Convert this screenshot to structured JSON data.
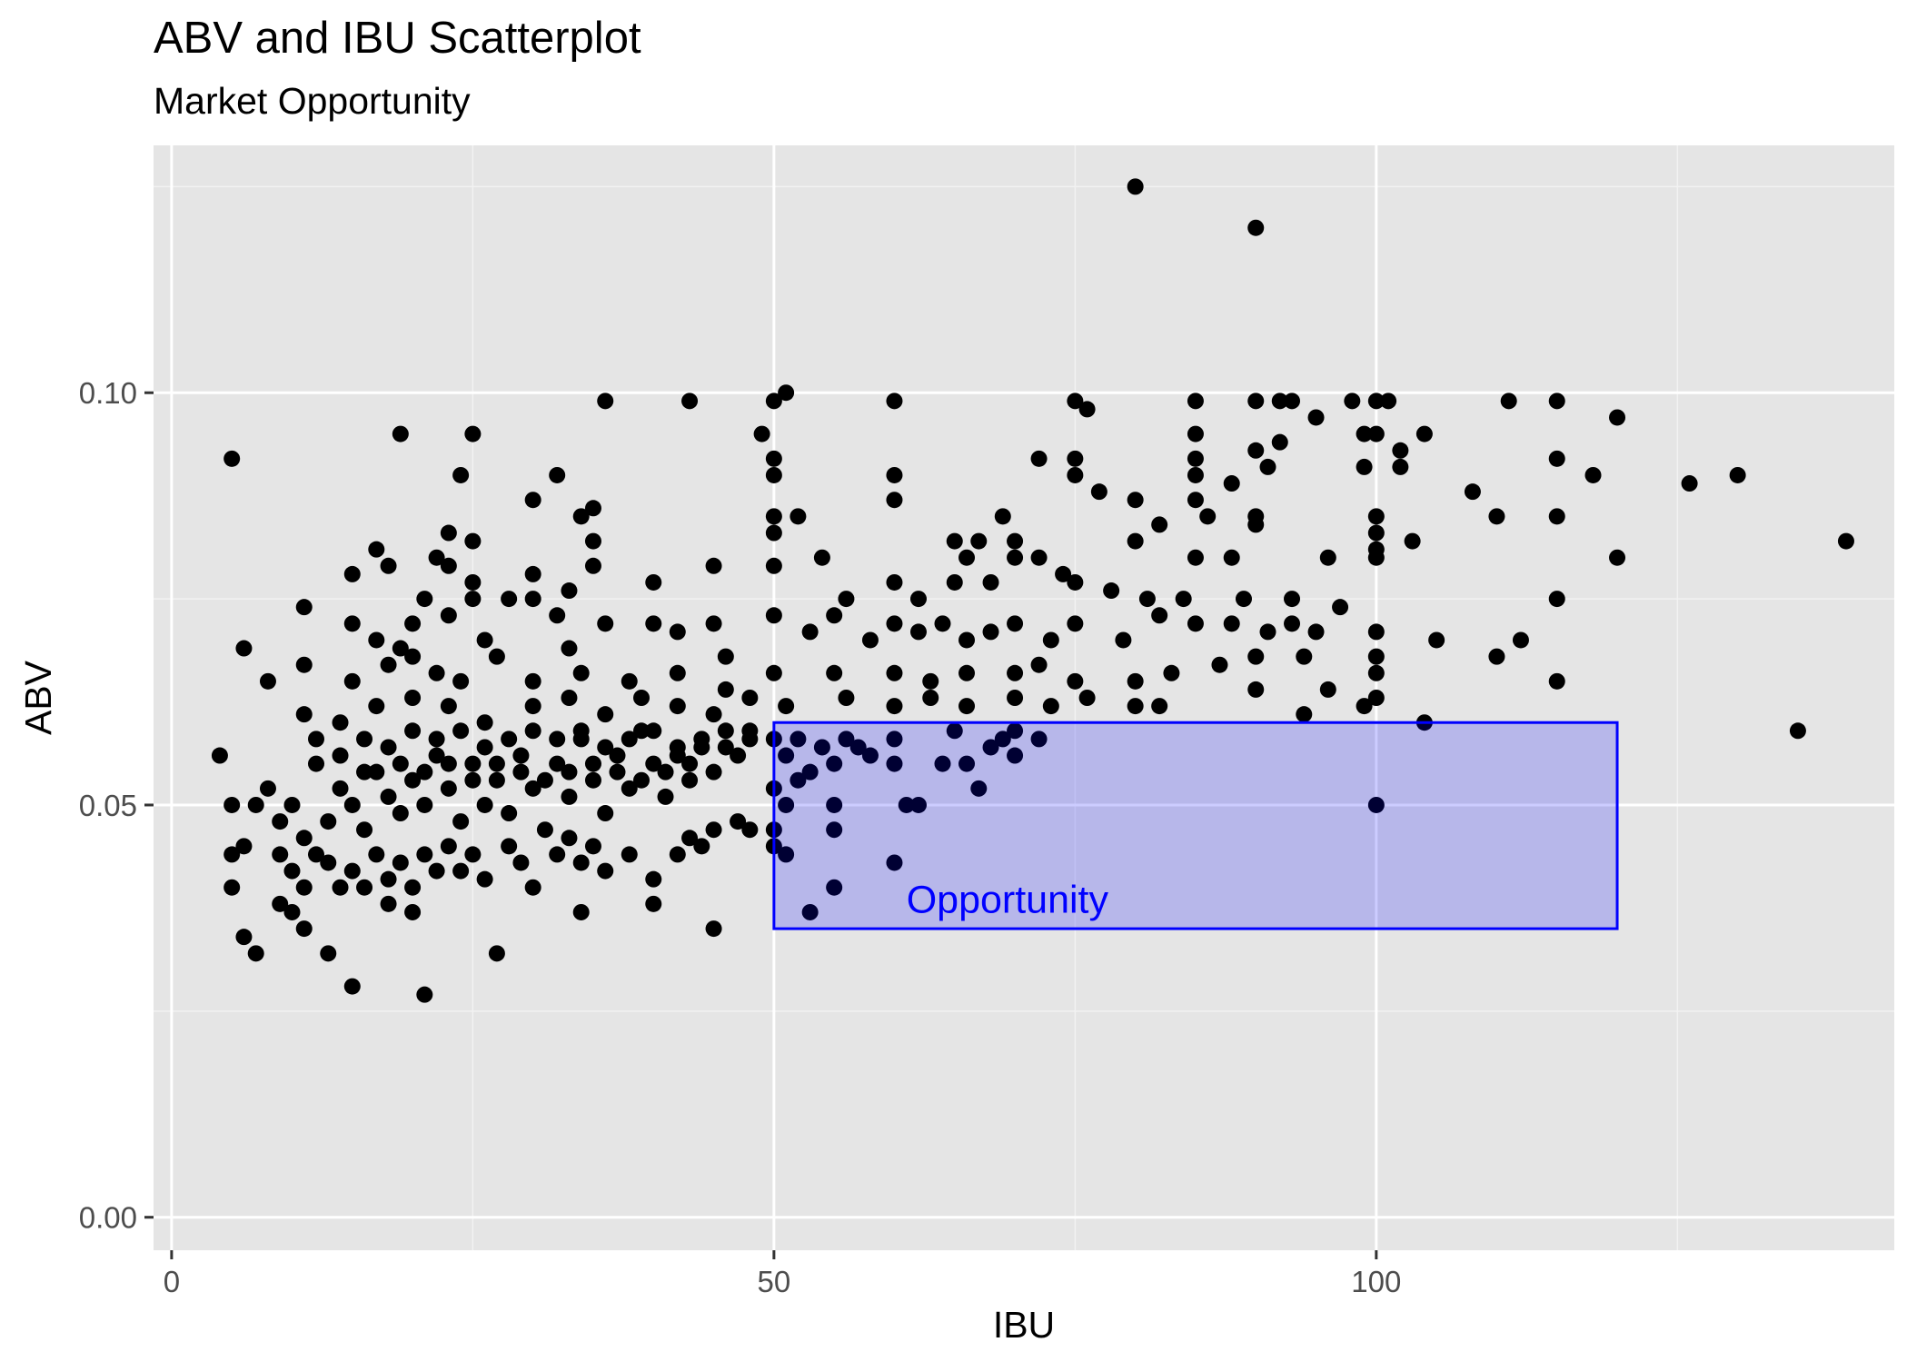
{
  "chart_data": {
    "type": "scatter",
    "title": "ABV and IBU Scatterplot",
    "subtitle": "Market Opportunity",
    "xlabel": "IBU",
    "ylabel": "ABV",
    "xlim": [
      -1.5,
      143
    ],
    "ylim": [
      -0.004,
      0.13
    ],
    "x_ticks": [
      0,
      50,
      100
    ],
    "x_tick_labels": [
      "0",
      "50",
      "100"
    ],
    "y_ticks": [
      0.0,
      0.05,
      0.1
    ],
    "y_tick_labels": [
      "0.00",
      "0.05",
      "0.10"
    ],
    "grid": true,
    "point_color": "#000000",
    "annotation": {
      "label": "Opportunity",
      "rect": {
        "x": [
          50,
          120
        ],
        "y": [
          0.035,
          0.06
        ]
      },
      "stroke": "#0000ff",
      "fill": "#0000ff",
      "fill_opacity": 0.2
    },
    "points": [
      [
        80,
        0.125
      ],
      [
        90,
        0.12
      ],
      [
        36,
        0.099
      ],
      [
        43,
        0.099
      ],
      [
        50,
        0.099
      ],
      [
        51,
        0.1
      ],
      [
        60,
        0.099
      ],
      [
        75,
        0.099
      ],
      [
        76,
        0.098
      ],
      [
        85,
        0.099
      ],
      [
        90,
        0.099
      ],
      [
        92,
        0.099
      ],
      [
        93,
        0.099
      ],
      [
        95,
        0.097
      ],
      [
        98,
        0.099
      ],
      [
        100,
        0.099
      ],
      [
        101,
        0.099
      ],
      [
        111,
        0.099
      ],
      [
        115,
        0.099
      ],
      [
        120,
        0.097
      ],
      [
        5,
        0.092
      ],
      [
        19,
        0.095
      ],
      [
        25,
        0.095
      ],
      [
        49,
        0.095
      ],
      [
        50,
        0.092
      ],
      [
        50,
        0.09
      ],
      [
        60,
        0.09
      ],
      [
        72,
        0.092
      ],
      [
        75,
        0.092
      ],
      [
        75,
        0.09
      ],
      [
        85,
        0.095
      ],
      [
        85,
        0.092
      ],
      [
        85,
        0.09
      ],
      [
        88,
        0.089
      ],
      [
        90,
        0.093
      ],
      [
        91,
        0.091
      ],
      [
        92,
        0.094
      ],
      [
        99,
        0.095
      ],
      [
        100,
        0.095
      ],
      [
        99,
        0.091
      ],
      [
        102,
        0.093
      ],
      [
        102,
        0.091
      ],
      [
        104,
        0.095
      ],
      [
        115,
        0.092
      ],
      [
        118,
        0.09
      ],
      [
        126,
        0.089
      ],
      [
        130,
        0.09
      ],
      [
        24,
        0.09
      ],
      [
        30,
        0.087
      ],
      [
        32,
        0.09
      ],
      [
        34,
        0.085
      ],
      [
        35,
        0.086
      ],
      [
        50,
        0.085
      ],
      [
        52,
        0.085
      ],
      [
        60,
        0.087
      ],
      [
        69,
        0.085
      ],
      [
        77,
        0.088
      ],
      [
        80,
        0.087
      ],
      [
        82,
        0.084
      ],
      [
        85,
        0.087
      ],
      [
        86,
        0.085
      ],
      [
        90,
        0.085
      ],
      [
        90,
        0.084
      ],
      [
        100,
        0.085
      ],
      [
        100,
        0.083
      ],
      [
        108,
        0.088
      ],
      [
        110,
        0.085
      ],
      [
        115,
        0.085
      ],
      [
        23,
        0.083
      ],
      [
        25,
        0.082
      ],
      [
        35,
        0.082
      ],
      [
        50,
        0.083
      ],
      [
        50,
        0.079
      ],
      [
        54,
        0.08
      ],
      [
        65,
        0.082
      ],
      [
        67,
        0.082
      ],
      [
        70,
        0.082
      ],
      [
        80,
        0.082
      ],
      [
        85,
        0.08
      ],
      [
        88,
        0.08
      ],
      [
        96,
        0.08
      ],
      [
        100,
        0.081
      ],
      [
        100,
        0.08
      ],
      [
        103,
        0.082
      ],
      [
        120,
        0.08
      ],
      [
        139,
        0.082
      ],
      [
        15,
        0.078
      ],
      [
        17,
        0.081
      ],
      [
        18,
        0.079
      ],
      [
        22,
        0.08
      ],
      [
        23,
        0.079
      ],
      [
        25,
        0.077
      ],
      [
        30,
        0.078
      ],
      [
        33,
        0.076
      ],
      [
        35,
        0.079
      ],
      [
        40,
        0.077
      ],
      [
        45,
        0.079
      ],
      [
        56,
        0.075
      ],
      [
        60,
        0.077
      ],
      [
        62,
        0.075
      ],
      [
        65,
        0.077
      ],
      [
        66,
        0.08
      ],
      [
        68,
        0.077
      ],
      [
        70,
        0.08
      ],
      [
        72,
        0.08
      ],
      [
        74,
        0.078
      ],
      [
        75,
        0.077
      ],
      [
        78,
        0.076
      ],
      [
        81,
        0.075
      ],
      [
        84,
        0.075
      ],
      [
        89,
        0.075
      ],
      [
        93,
        0.075
      ],
      [
        97,
        0.074
      ],
      [
        115,
        0.075
      ],
      [
        11,
        0.074
      ],
      [
        15,
        0.072
      ],
      [
        17,
        0.07
      ],
      [
        19,
        0.069
      ],
      [
        20,
        0.072
      ],
      [
        21,
        0.075
      ],
      [
        23,
        0.073
      ],
      [
        25,
        0.075
      ],
      [
        26,
        0.07
      ],
      [
        28,
        0.075
      ],
      [
        30,
        0.075
      ],
      [
        32,
        0.073
      ],
      [
        33,
        0.069
      ],
      [
        36,
        0.072
      ],
      [
        40,
        0.072
      ],
      [
        42,
        0.071
      ],
      [
        45,
        0.072
      ],
      [
        46,
        0.068
      ],
      [
        50,
        0.073
      ],
      [
        53,
        0.071
      ],
      [
        55,
        0.073
      ],
      [
        58,
        0.07
      ],
      [
        60,
        0.072
      ],
      [
        62,
        0.071
      ],
      [
        64,
        0.072
      ],
      [
        66,
        0.07
      ],
      [
        68,
        0.071
      ],
      [
        70,
        0.072
      ],
      [
        73,
        0.07
      ],
      [
        75,
        0.072
      ],
      [
        79,
        0.07
      ],
      [
        82,
        0.073
      ],
      [
        85,
        0.072
      ],
      [
        88,
        0.072
      ],
      [
        91,
        0.071
      ],
      [
        93,
        0.072
      ],
      [
        95,
        0.071
      ],
      [
        105,
        0.07
      ],
      [
        112,
        0.07
      ],
      [
        100,
        0.071
      ],
      [
        6,
        0.069
      ],
      [
        8,
        0.065
      ],
      [
        11,
        0.067
      ],
      [
        15,
        0.065
      ],
      [
        18,
        0.067
      ],
      [
        20,
        0.068
      ],
      [
        22,
        0.066
      ],
      [
        24,
        0.065
      ],
      [
        27,
        0.068
      ],
      [
        30,
        0.065
      ],
      [
        34,
        0.066
      ],
      [
        38,
        0.065
      ],
      [
        42,
        0.066
      ],
      [
        46,
        0.064
      ],
      [
        50,
        0.066
      ],
      [
        55,
        0.066
      ],
      [
        60,
        0.066
      ],
      [
        63,
        0.065
      ],
      [
        66,
        0.066
      ],
      [
        70,
        0.066
      ],
      [
        72,
        0.067
      ],
      [
        75,
        0.065
      ],
      [
        80,
        0.065
      ],
      [
        83,
        0.066
      ],
      [
        87,
        0.067
      ],
      [
        90,
        0.068
      ],
      [
        94,
        0.068
      ],
      [
        96,
        0.064
      ],
      [
        100,
        0.066
      ],
      [
        100,
        0.068
      ],
      [
        110,
        0.068
      ],
      [
        115,
        0.065
      ],
      [
        90,
        0.064
      ],
      [
        11,
        0.061
      ],
      [
        14,
        0.06
      ],
      [
        17,
        0.062
      ],
      [
        20,
        0.063
      ],
      [
        23,
        0.062
      ],
      [
        26,
        0.06
      ],
      [
        30,
        0.062
      ],
      [
        33,
        0.063
      ],
      [
        36,
        0.061
      ],
      [
        39,
        0.063
      ],
      [
        42,
        0.062
      ],
      [
        45,
        0.061
      ],
      [
        48,
        0.063
      ],
      [
        51,
        0.062
      ],
      [
        56,
        0.063
      ],
      [
        60,
        0.062
      ],
      [
        63,
        0.063
      ],
      [
        66,
        0.062
      ],
      [
        70,
        0.063
      ],
      [
        73,
        0.062
      ],
      [
        76,
        0.063
      ],
      [
        80,
        0.062
      ],
      [
        82,
        0.062
      ],
      [
        94,
        0.061
      ],
      [
        99,
        0.062
      ],
      [
        100,
        0.063
      ],
      [
        104,
        0.06
      ],
      [
        135,
        0.059
      ],
      [
        4,
        0.056
      ],
      [
        5,
        0.05
      ],
      [
        6,
        0.045
      ],
      [
        7,
        0.05
      ],
      [
        8,
        0.052
      ],
      [
        9,
        0.048
      ],
      [
        10,
        0.05
      ],
      [
        11,
        0.046
      ],
      [
        12,
        0.055
      ],
      [
        13,
        0.048
      ],
      [
        14,
        0.052
      ],
      [
        15,
        0.05
      ],
      [
        16,
        0.047
      ],
      [
        17,
        0.054
      ],
      [
        18,
        0.051
      ],
      [
        19,
        0.049
      ],
      [
        20,
        0.053
      ],
      [
        21,
        0.05
      ],
      [
        22,
        0.056
      ],
      [
        23,
        0.052
      ],
      [
        24,
        0.048
      ],
      [
        25,
        0.055
      ],
      [
        26,
        0.05
      ],
      [
        27,
        0.053
      ],
      [
        28,
        0.049
      ],
      [
        29,
        0.056
      ],
      [
        30,
        0.052
      ],
      [
        31,
        0.047
      ],
      [
        32,
        0.055
      ],
      [
        33,
        0.051
      ],
      [
        34,
        0.058
      ],
      [
        35,
        0.053
      ],
      [
        36,
        0.049
      ],
      [
        37,
        0.056
      ],
      [
        38,
        0.052
      ],
      [
        39,
        0.059
      ],
      [
        40,
        0.055
      ],
      [
        41,
        0.051
      ],
      [
        42,
        0.057
      ],
      [
        43,
        0.053
      ],
      [
        44,
        0.058
      ],
      [
        45,
        0.054
      ],
      [
        46,
        0.059
      ],
      [
        47,
        0.056
      ],
      [
        48,
        0.058
      ],
      [
        12,
        0.058
      ],
      [
        14,
        0.056
      ],
      [
        16,
        0.058
      ],
      [
        18,
        0.057
      ],
      [
        20,
        0.059
      ],
      [
        22,
        0.058
      ],
      [
        24,
        0.059
      ],
      [
        26,
        0.057
      ],
      [
        28,
        0.058
      ],
      [
        30,
        0.059
      ],
      [
        32,
        0.058
      ],
      [
        34,
        0.059
      ],
      [
        36,
        0.057
      ],
      [
        38,
        0.058
      ],
      [
        40,
        0.059
      ],
      [
        42,
        0.056
      ],
      [
        44,
        0.057
      ],
      [
        46,
        0.057
      ],
      [
        48,
        0.059
      ],
      [
        16,
        0.054
      ],
      [
        19,
        0.055
      ],
      [
        21,
        0.054
      ],
      [
        23,
        0.055
      ],
      [
        25,
        0.053
      ],
      [
        27,
        0.055
      ],
      [
        29,
        0.054
      ],
      [
        31,
        0.053
      ],
      [
        33,
        0.054
      ],
      [
        35,
        0.055
      ],
      [
        37,
        0.054
      ],
      [
        39,
        0.053
      ],
      [
        41,
        0.054
      ],
      [
        43,
        0.055
      ],
      [
        9,
        0.044
      ],
      [
        10,
        0.042
      ],
      [
        11,
        0.04
      ],
      [
        12,
        0.044
      ],
      [
        13,
        0.043
      ],
      [
        14,
        0.04
      ],
      [
        15,
        0.042
      ],
      [
        16,
        0.04
      ],
      [
        17,
        0.044
      ],
      [
        18,
        0.041
      ],
      [
        19,
        0.043
      ],
      [
        20,
        0.04
      ],
      [
        21,
        0.044
      ],
      [
        22,
        0.042
      ],
      [
        23,
        0.045
      ],
      [
        24,
        0.042
      ],
      [
        25,
        0.044
      ],
      [
        26,
        0.041
      ],
      [
        28,
        0.045
      ],
      [
        29,
        0.043
      ],
      [
        30,
        0.04
      ],
      [
        32,
        0.044
      ],
      [
        33,
        0.046
      ],
      [
        34,
        0.043
      ],
      [
        35,
        0.045
      ],
      [
        36,
        0.042
      ],
      [
        38,
        0.044
      ],
      [
        40,
        0.041
      ],
      [
        42,
        0.044
      ],
      [
        43,
        0.046
      ],
      [
        44,
        0.045
      ],
      [
        45,
        0.047
      ],
      [
        47,
        0.048
      ],
      [
        48,
        0.047
      ],
      [
        5,
        0.044
      ],
      [
        5,
        0.04
      ],
      [
        6,
        0.034
      ],
      [
        7,
        0.032
      ],
      [
        9,
        0.038
      ],
      [
        10,
        0.037
      ],
      [
        11,
        0.035
      ],
      [
        13,
        0.032
      ],
      [
        15,
        0.028
      ],
      [
        18,
        0.038
      ],
      [
        20,
        0.037
      ],
      [
        21,
        0.027
      ],
      [
        27,
        0.032
      ],
      [
        34,
        0.037
      ],
      [
        40,
        0.038
      ],
      [
        45,
        0.035
      ],
      [
        50,
        0.058
      ],
      [
        51,
        0.056
      ],
      [
        52,
        0.058
      ],
      [
        53,
        0.054
      ],
      [
        54,
        0.057
      ],
      [
        55,
        0.055
      ],
      [
        56,
        0.058
      ],
      [
        57,
        0.057
      ],
      [
        58,
        0.056
      ],
      [
        60,
        0.058
      ],
      [
        60,
        0.055
      ],
      [
        61,
        0.05
      ],
      [
        62,
        0.05
      ],
      [
        64,
        0.055
      ],
      [
        65,
        0.059
      ],
      [
        66,
        0.055
      ],
      [
        67,
        0.052
      ],
      [
        68,
        0.057
      ],
      [
        69,
        0.058
      ],
      [
        70,
        0.059
      ],
      [
        70,
        0.056
      ],
      [
        72,
        0.058
      ],
      [
        50,
        0.052
      ],
      [
        51,
        0.05
      ],
      [
        52,
        0.053
      ],
      [
        55,
        0.05
      ],
      [
        55,
        0.047
      ],
      [
        50,
        0.047
      ],
      [
        50,
        0.045
      ],
      [
        51,
        0.044
      ],
      [
        55,
        0.04
      ],
      [
        53,
        0.037
      ],
      [
        60,
        0.043
      ],
      [
        100,
        0.05
      ]
    ]
  }
}
